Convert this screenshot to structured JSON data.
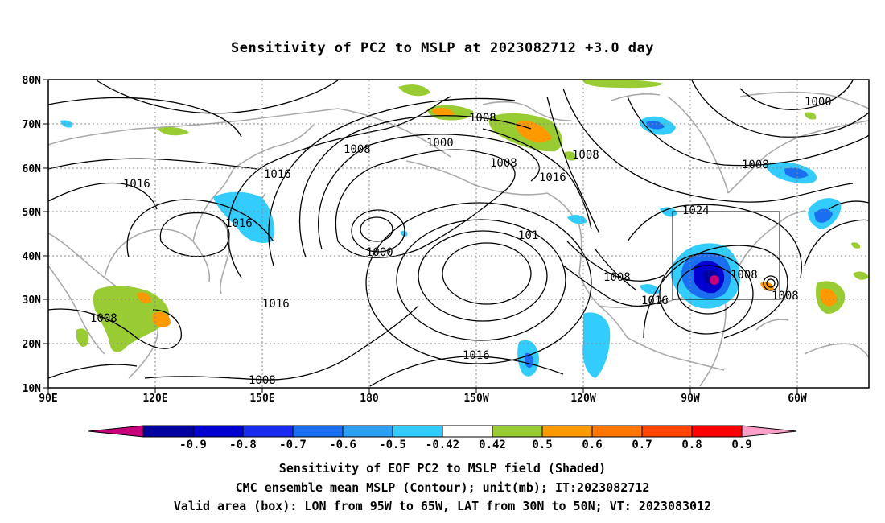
{
  "title": "Sensitivity of PC2 to MSLP at 2023082712 +3.0 day",
  "map": {
    "lon_labels": [
      "90E",
      "120E",
      "150E",
      "180",
      "150W",
      "120W",
      "90W",
      "60W"
    ],
    "lat_labels": [
      "80N",
      "70N",
      "60N",
      "50N",
      "40N",
      "30N",
      "20N",
      "10N"
    ],
    "valid_box": {
      "lon": [
        "95W",
        "65W"
      ],
      "lat": [
        "30N",
        "50N"
      ]
    },
    "contour_labels": [
      "1000",
      "1000",
      "1000",
      "1008",
      "1008",
      "1008",
      "1008",
      "1008",
      "1008",
      "1008",
      "1008",
      "1008",
      "1008",
      "1016",
      "1016",
      "1016",
      "1016",
      "1016",
      "1016",
      "1016",
      "1024",
      "101"
    ]
  },
  "colorbar": {
    "labels": [
      "-0.9",
      "-0.8",
      "-0.7",
      "-0.6",
      "-0.5",
      "-0.42",
      "0.42",
      "0.5",
      "0.6",
      "0.7",
      "0.8",
      "0.9"
    ],
    "colors": [
      "#c8007a",
      "#0000a0",
      "#0000d0",
      "#1a2bf0",
      "#1a6ff0",
      "#2da0f5",
      "#33ccff",
      "#ffffff",
      "#99cc33",
      "#ff9900",
      "#ff7700",
      "#ff4400",
      "#ff0000",
      "#ffa0c8"
    ]
  },
  "footer": {
    "line1": "Sensitivity of EOF PC2 to MSLP field (Shaded)",
    "line2": "CMC ensemble mean MSLP (Contour); unit(mb); IT:2023082712",
    "line3": "Valid area (box): LON from 95W to 65W, LAT from 30N to 50N; VT: 2023083012"
  }
}
